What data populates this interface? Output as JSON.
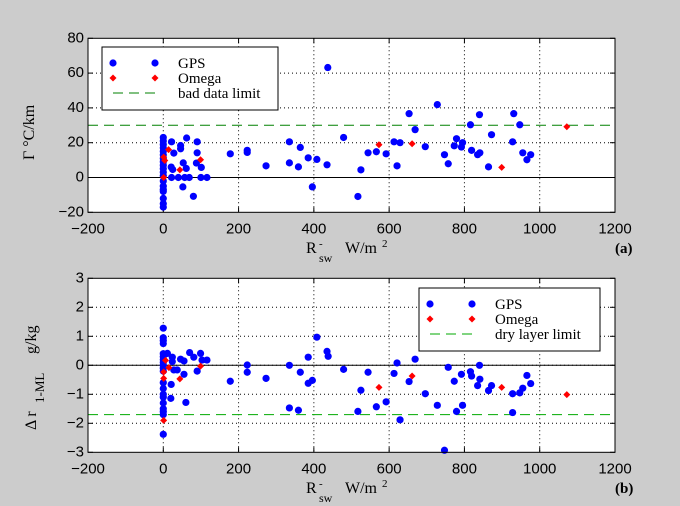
{
  "chart_data": [
    {
      "type": "scatter",
      "panel_label": "(a)",
      "ylabel": "Γ °C/km",
      "xlabel": {
        "main": "R",
        "sub": "sw",
        "sup": "-",
        "unit": "W/m",
        "unit_sup": "2"
      },
      "xlim": [
        -200,
        1200
      ],
      "ylim": [
        -20,
        80
      ],
      "xticks": [
        "-200",
        "0",
        "200",
        "400",
        "600",
        "800",
        "1000",
        "1200"
      ],
      "yticks": [
        "-20",
        "0",
        "20",
        "40",
        "60",
        "80"
      ],
      "grid": true,
      "legend_position": "top-left",
      "colors": {
        "GPS": "#0000ff",
        "Omega": "#ff0000",
        "limit": "#008000"
      },
      "limit_line": {
        "name": "bad data limit",
        "y": 30
      },
      "zero_line": 0,
      "series": [
        {
          "name": "GPS",
          "marker": "circle",
          "points": [
            [
              0,
              23
            ],
            [
              0,
              21
            ],
            [
              0,
              19
            ],
            [
              0,
              17
            ],
            [
              0,
              15
            ],
            [
              0,
              13
            ],
            [
              0,
              11
            ],
            [
              0,
              9
            ],
            [
              0,
              7
            ],
            [
              0,
              5
            ],
            [
              0,
              3
            ],
            [
              0,
              1
            ],
            [
              0,
              -2
            ],
            [
              0,
              -5
            ],
            [
              0,
              -7
            ],
            [
              0,
              -8
            ],
            [
              0,
              -12
            ],
            [
              0,
              -15
            ],
            [
              0,
              -17
            ],
            [
              22,
              20.5
            ],
            [
              46,
              18.4
            ],
            [
              46,
              16.5
            ],
            [
              62,
              22.7
            ],
            [
              90,
              20.5
            ],
            [
              90,
              14.2
            ],
            [
              28,
              14
            ],
            [
              53,
              8.4
            ],
            [
              61,
              5.2
            ],
            [
              21,
              6
            ],
            [
              25,
              4.6
            ],
            [
              101,
              5.8
            ],
            [
              88,
              8.3
            ],
            [
              52,
              -5.4
            ],
            [
              80,
              -10.8
            ],
            [
              22,
              0
            ],
            [
              40,
              0
            ],
            [
              57,
              0
            ],
            [
              69,
              0
            ],
            [
              100,
              0
            ],
            [
              116,
              0
            ],
            [
              178,
              13.6
            ],
            [
              223,
              15.6
            ],
            [
              223,
              14.4
            ],
            [
              273,
              6.7
            ],
            [
              335,
              20.5
            ],
            [
              335,
              8.4
            ],
            [
              364,
              17.3
            ],
            [
              359,
              6.1
            ],
            [
              385,
              11.3
            ],
            [
              408,
              10.4
            ],
            [
              396,
              -5.4
            ],
            [
              435,
              7.3
            ],
            [
              437,
              63.2
            ],
            [
              479,
              23
            ],
            [
              517,
              -10.9
            ],
            [
              525,
              4.4
            ],
            [
              544,
              14.2
            ],
            [
              566,
              14.8
            ],
            [
              592,
              13.6
            ],
            [
              613,
              20.5
            ],
            [
              621,
              6.7
            ],
            [
              629,
              20
            ],
            [
              653,
              36.7
            ],
            [
              669,
              27.5
            ],
            [
              696,
              17.7
            ],
            [
              728,
              41.9
            ],
            [
              747,
              13.1
            ],
            [
              757,
              7.9
            ],
            [
              773,
              18.2
            ],
            [
              779,
              22.3
            ],
            [
              792,
              17.5
            ],
            [
              795,
              20
            ],
            [
              816,
              30.3
            ],
            [
              819,
              15.6
            ],
            [
              835,
              13.1
            ],
            [
              840,
              36.1
            ],
            [
              841,
              14.2
            ],
            [
              864,
              6.1
            ],
            [
              872,
              24.6
            ],
            [
              928,
              20.5
            ],
            [
              931,
              36.7
            ],
            [
              947,
              30.3
            ],
            [
              955,
              14.2
            ],
            [
              966,
              10.2
            ],
            [
              976,
              13.1
            ]
          ]
        },
        {
          "name": "Omega",
          "marker": "diamond",
          "points": [
            [
              1,
              0
            ],
            [
              1,
              11.7
            ],
            [
              4,
              9.8
            ],
            [
              14,
              16
            ],
            [
              44,
              4.4
            ],
            [
              99,
              10.2
            ],
            [
              573,
              18.8
            ],
            [
              661,
              19.4
            ],
            [
              899,
              5.8
            ],
            [
              1072,
              29.2
            ]
          ]
        }
      ]
    },
    {
      "type": "scatter",
      "panel_label": "(b)",
      "ylabel": {
        "main": "Δ r",
        "sub": "1-ML",
        "unit": "g/kg"
      },
      "xlabel": {
        "main": "R",
        "sub": "sw",
        "sup": "-",
        "unit": "W/m",
        "unit_sup": "2"
      },
      "xlim": [
        -200,
        1200
      ],
      "ylim": [
        -3,
        3
      ],
      "xticks": [
        "-200",
        "0",
        "200",
        "400",
        "600",
        "800",
        "1000",
        "1200"
      ],
      "yticks": [
        "-3",
        "-2",
        "-1",
        "0",
        "1",
        "2",
        "3"
      ],
      "grid": true,
      "legend_position": "top-right",
      "colors": {
        "GPS": "#0000ff",
        "Omega": "#ff0000",
        "limit": "#00aa00"
      },
      "limit_line": {
        "name": "dry layer limit",
        "y": -1.7
      },
      "zero_line": 0,
      "series": [
        {
          "name": "GPS",
          "marker": "circle",
          "points": [
            [
              0,
              1.28
            ],
            [
              0,
              0.95
            ],
            [
              0,
              0.85
            ],
            [
              0,
              0.75
            ],
            [
              0,
              0.4
            ],
            [
              0,
              0.3
            ],
            [
              0,
              0.2
            ],
            [
              0,
              0.1
            ],
            [
              0,
              0
            ],
            [
              0,
              -0.1
            ],
            [
              0,
              -0.2
            ],
            [
              0,
              -0.6
            ],
            [
              0,
              -0.8
            ],
            [
              0,
              -1.0
            ],
            [
              0,
              -1.1
            ],
            [
              0,
              -1.3
            ],
            [
              0,
              -1.5
            ],
            [
              0,
              -1.6
            ],
            [
              0,
              -1.7
            ],
            [
              0,
              -2.38
            ],
            [
              24,
              0.28
            ],
            [
              24,
              0.13
            ],
            [
              28,
              -0.16
            ],
            [
              21,
              -0.66
            ],
            [
              20,
              -1.14
            ],
            [
              46,
              0.21
            ],
            [
              55,
              0.15
            ],
            [
              55,
              -0.31
            ],
            [
              60,
              -1.28
            ],
            [
              70,
              0.44
            ],
            [
              81,
              0.28
            ],
            [
              90,
              -0.2
            ],
            [
              99,
              0.41
            ],
            [
              103,
              0.18
            ],
            [
              116,
              0.18
            ],
            [
              37,
              -0.16
            ],
            [
              11,
              0.41
            ],
            [
              178,
              -0.55
            ],
            [
              223,
              0.01
            ],
            [
              223,
              -0.24
            ],
            [
              273,
              -0.45
            ],
            [
              335,
              0
            ],
            [
              335,
              -1.47
            ],
            [
              359,
              -1.55
            ],
            [
              364,
              -0.24
            ],
            [
              385,
              0.28
            ],
            [
              385,
              -0.62
            ],
            [
              396,
              -0.52
            ],
            [
              408,
              0.97
            ],
            [
              435,
              0.48
            ],
            [
              438,
              0.31
            ],
            [
              479,
              -0.14
            ],
            [
              517,
              -1.59
            ],
            [
              525,
              -0.86
            ],
            [
              544,
              -0.24
            ],
            [
              566,
              -1.43
            ],
            [
              592,
              -1.26
            ],
            [
              613,
              -0.28
            ],
            [
              621,
              0.08
            ],
            [
              629,
              -1.88
            ],
            [
              653,
              -0.56
            ],
            [
              669,
              0.21
            ],
            [
              696,
              -0.98
            ],
            [
              728,
              -1.38
            ],
            [
              747,
              -2.93
            ],
            [
              757,
              -0.07
            ],
            [
              773,
              -0.55
            ],
            [
              779,
              -1.59
            ],
            [
              792,
              -0.31
            ],
            [
              795,
              -1.38
            ],
            [
              816,
              -0.22
            ],
            [
              819,
              -0.37
            ],
            [
              835,
              -0.7
            ],
            [
              840,
              0
            ],
            [
              841,
              -0.48
            ],
            [
              864,
              -0.87
            ],
            [
              872,
              -0.7
            ],
            [
              928,
              -0.98
            ],
            [
              928,
              -1.63
            ],
            [
              947,
              -0.95
            ],
            [
              955,
              -0.79
            ],
            [
              966,
              -0.35
            ],
            [
              976,
              -0.63
            ]
          ]
        },
        {
          "name": "Omega",
          "marker": "diamond",
          "points": [
            [
              6,
              0.17
            ],
            [
              15,
              -0.08
            ],
            [
              1,
              -0.23
            ],
            [
              1,
              -0.45
            ],
            [
              44,
              -0.47
            ],
            [
              99,
              -0.03
            ],
            [
              1,
              -1.9
            ],
            [
              573,
              -0.76
            ],
            [
              661,
              -0.37
            ],
            [
              899,
              -0.76
            ],
            [
              1072,
              -1.01
            ]
          ]
        }
      ]
    }
  ]
}
